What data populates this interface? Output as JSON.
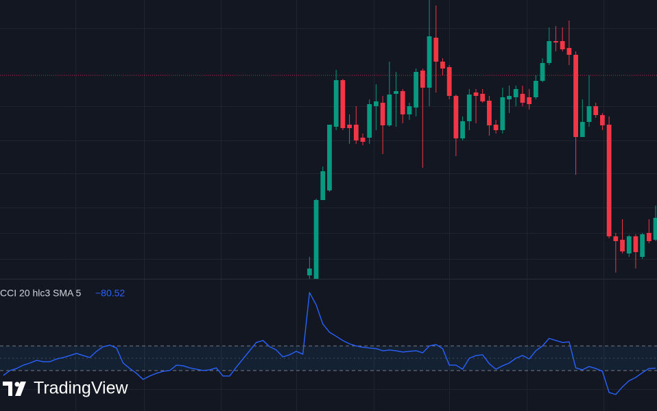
{
  "logo": "TradingView",
  "chart_data": [
    {
      "type": "candlestick",
      "x": [
        0,
        1,
        2,
        3,
        4,
        5,
        6,
        7,
        8,
        9,
        10,
        11,
        12,
        13,
        14,
        15,
        16,
        17,
        18,
        19,
        20,
        21,
        22,
        23,
        24,
        25,
        26,
        27,
        28,
        29,
        30,
        31,
        32,
        33,
        34,
        35,
        36,
        37,
        38,
        39,
        40,
        41,
        42,
        43,
        44,
        45,
        46,
        47,
        48,
        49,
        50,
        51,
        52
      ],
      "open": [
        5,
        -10,
        115,
        129,
        222,
        290,
        225,
        225,
        206,
        206,
        252,
        257,
        224,
        270,
        274,
        240,
        250,
        304,
        279,
        352,
        317,
        309,
        267,
        205,
        230,
        272,
        270,
        260,
        225,
        217,
        262,
        265,
        270,
        265,
        265,
        289,
        315,
        347,
        347,
        337,
        327,
        207,
        229,
        252,
        239,
        225,
        62,
        57,
        37,
        62,
        32,
        67,
        57
      ],
      "high": [
        32,
        117,
        164,
        225,
        305,
        292,
        240,
        252,
        212,
        262,
        284,
        267,
        317,
        302,
        277,
        257,
        307,
        307,
        407,
        399,
        322,
        312,
        269,
        237,
        277,
        277,
        277,
        267,
        232,
        279,
        282,
        282,
        282,
        277,
        297,
        322,
        367,
        369,
        367,
        377,
        332,
        262,
        297,
        257,
        242,
        237,
        67,
        87,
        64,
        65,
        67,
        87,
        107
      ],
      "low": [
        0,
        -20,
        115,
        127,
        217,
        217,
        197,
        197,
        195,
        197,
        217,
        182,
        222,
        222,
        227,
        232,
        237,
        162,
        252,
        272,
        297,
        262,
        179,
        202,
        217,
        227,
        257,
        209,
        212,
        212,
        242,
        252,
        252,
        247,
        262,
        287,
        312,
        332,
        332,
        312,
        152,
        207,
        222,
        235,
        217,
        59,
        9,
        37,
        32,
        15,
        29,
        52,
        55
      ],
      "close": [
        15,
        115,
        157,
        225,
        290,
        220,
        220,
        202,
        200,
        255,
        259,
        224,
        269,
        274,
        240,
        252,
        302,
        279,
        354,
        317,
        307,
        267,
        205,
        230,
        269,
        267,
        259,
        224,
        217,
        265,
        267,
        277,
        257,
        255,
        289,
        315,
        347,
        345,
        335,
        327,
        207,
        229,
        252,
        239,
        224,
        62,
        55,
        40,
        62,
        39,
        65,
        55,
        89
      ],
      "xlim": [
        -46.5,
        52.2
      ],
      "ylim": [
        0,
        407
      ],
      "up_color": "#089981",
      "down_color": "#f23645",
      "price_line": 297,
      "price_line_color": "#f23645"
    },
    {
      "type": "line",
      "title": "CCI 20 hlc3 SMA 5",
      "legend_value": "−80.52",
      "x": [
        -46,
        -45,
        -44,
        -43,
        -42,
        -41,
        -40,
        -39,
        -38,
        -37,
        -36,
        -35,
        -34,
        -33,
        -32,
        -31,
        -30,
        -29,
        -28,
        -27,
        -26,
        -25,
        -24,
        -23,
        -22,
        -21,
        -20,
        -19,
        -18,
        -17,
        -16,
        -15,
        -14,
        -13,
        -12,
        -11,
        -10,
        -9,
        -8,
        -7,
        -6,
        -5,
        -4,
        -3,
        -2,
        -1,
        0,
        1,
        2,
        3,
        4,
        5,
        6,
        7,
        8,
        9,
        10,
        11,
        12,
        13,
        14,
        15,
        16,
        17,
        18,
        19,
        20,
        21,
        22,
        23,
        24,
        25,
        26,
        27,
        28,
        29,
        30,
        31,
        32,
        33,
        34,
        35,
        36,
        37,
        38,
        39,
        40,
        41,
        42,
        43,
        44,
        45,
        46,
        47,
        48,
        49,
        50,
        51,
        52
      ],
      "values": [
        -139,
        -100,
        -83,
        -56,
        -39,
        -17,
        -28,
        -28,
        -6,
        6,
        22,
        39,
        22,
        6,
        56,
        94,
        106,
        83,
        -39,
        -83,
        -122,
        -172,
        -144,
        -122,
        -106,
        -100,
        -56,
        -61,
        -78,
        -89,
        -100,
        -94,
        -78,
        -144,
        -144,
        -72,
        -6,
        61,
        128,
        144,
        94,
        67,
        11,
        28,
        56,
        33,
        533,
        433,
        278,
        211,
        178,
        144,
        117,
        100,
        89,
        83,
        78,
        61,
        67,
        61,
        50,
        56,
        61,
        44,
        100,
        111,
        78,
        -56,
        -56,
        -89,
        0,
        22,
        28,
        -44,
        -89,
        -61,
        -39,
        0,
        22,
        -6,
        61,
        100,
        161,
        144,
        128,
        133,
        -78,
        -94,
        -67,
        -83,
        -106,
        -278,
        -294,
        -233,
        -183,
        -156,
        -117,
        -83,
        -80.52
      ],
      "color": "#2962ff",
      "xlim": [
        -46.5,
        52.2
      ],
      "ylim": [
        -428,
        639
      ],
      "bands": [
        100,
        0,
        -100
      ],
      "band_color": "#787b86"
    }
  ]
}
